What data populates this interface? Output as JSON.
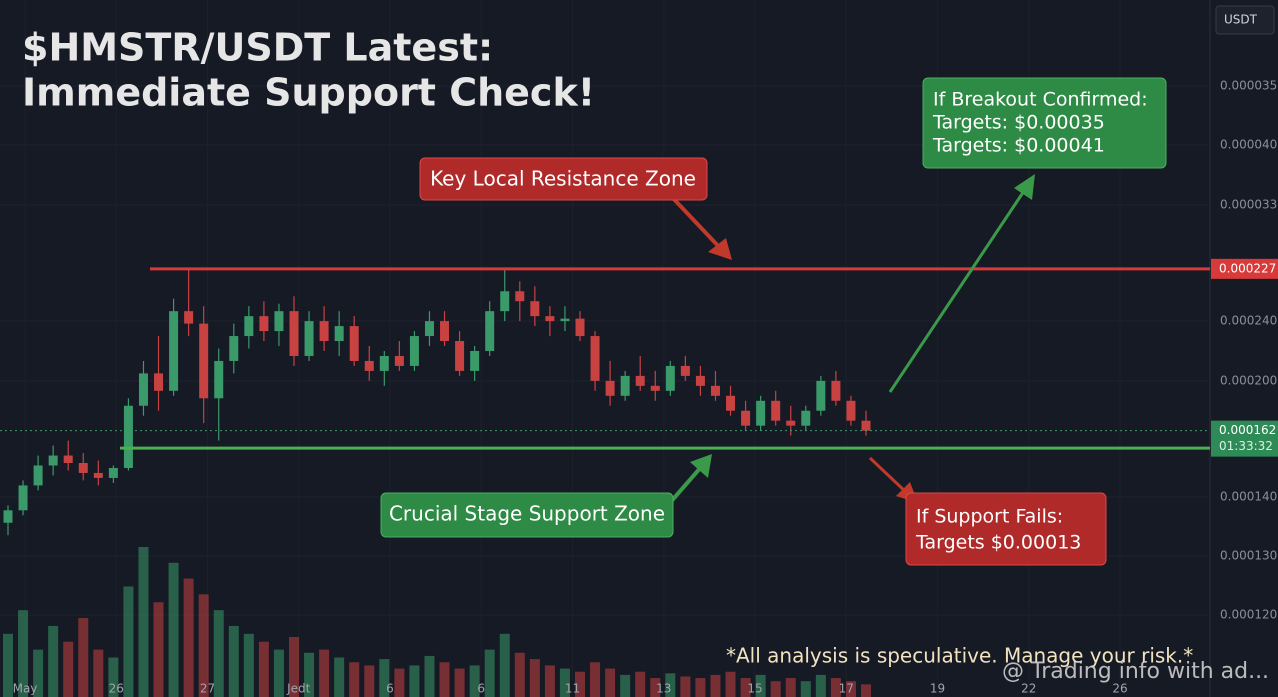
{
  "chart_data": {
    "type": "candlestick",
    "title_lines": [
      "$HMSTR/USDT Latest:",
      "Immediate Support Check!"
    ],
    "currency": "USDT",
    "categories": [
      "May",
      "26",
      "27",
      "Jedt",
      "6",
      "6",
      "11",
      "13",
      "15",
      "17",
      "19",
      "22",
      "26"
    ],
    "ylim": [
      5.5e-05,
      0.000335
    ],
    "price_scale_labels": [
      "0.000035",
      "0.000040",
      "0.000033",
      "0.000240",
      "0.000200",
      "0.000140",
      "0.000130",
      "0.000120"
    ],
    "open": [
      0.000125,
      0.00013,
      0.00014,
      0.000148,
      0.000152,
      0.000149,
      0.000145,
      0.000143,
      0.000147,
      0.000172,
      0.000185,
      0.000178,
      0.00021,
      0.000205,
      0.000175,
      0.00019,
      0.0002,
      0.000208,
      0.000202,
      0.00021,
      0.000192,
      0.000206,
      0.000198,
      0.000204,
      0.00019,
      0.000186,
      0.000192,
      0.000188,
      0.0002,
      0.000206,
      0.000198,
      0.000186,
      0.000194,
      0.00021,
      0.000218,
      0.000214,
      0.000208,
      0.000206,
      0.000207,
      0.0002,
      0.000182,
      0.000176,
      0.000184,
      0.00018,
      0.000178,
      0.000188,
      0.000184,
      0.00018,
      0.000176,
      0.00017,
      0.000164,
      0.000174,
      0.000166,
      0.000164,
      0.00017,
      0.000182,
      0.000174,
      0.000166
    ],
    "high": [
      0.000132,
      0.000142,
      0.000152,
      0.000156,
      0.000158,
      0.000153,
      0.00015,
      0.000148,
      0.000175,
      0.00019,
      0.0002,
      0.000215,
      0.000227,
      0.000212,
      0.000195,
      0.000205,
      0.000212,
      0.000214,
      0.000213,
      0.000216,
      0.00021,
      0.000212,
      0.00021,
      0.000208,
      0.000196,
      0.000194,
      0.000198,
      0.000202,
      0.00021,
      0.00021,
      0.000202,
      0.000196,
      0.000214,
      0.000227,
      0.000222,
      0.00022,
      0.000212,
      0.000212,
      0.00021,
      0.000202,
      0.00019,
      0.000186,
      0.000192,
      0.000186,
      0.00019,
      0.000192,
      0.000188,
      0.000186,
      0.00018,
      0.000174,
      0.000176,
      0.000178,
      0.000172,
      0.000172,
      0.000184,
      0.000186,
      0.000176,
      0.00017
    ],
    "low": [
      0.00012,
      0.000128,
      0.000138,
      0.000144,
      0.000146,
      0.000142,
      0.00014,
      0.000141,
      0.000146,
      0.000168,
      0.00017,
      0.000176,
      0.0002,
      0.000165,
      0.000158,
      0.000185,
      0.000195,
      0.000198,
      0.000196,
      0.000188,
      0.00019,
      0.000194,
      0.000192,
      0.000188,
      0.000182,
      0.00018,
      0.000186,
      0.000186,
      0.000196,
      0.000196,
      0.000184,
      0.000182,
      0.000192,
      0.000206,
      0.000206,
      0.000204,
      0.0002,
      0.000202,
      0.000198,
      0.000178,
      0.000172,
      0.000174,
      0.000178,
      0.000174,
      0.000176,
      0.000182,
      0.000176,
      0.000174,
      0.000168,
      0.000162,
      0.000162,
      0.000164,
      0.00016,
      0.000162,
      0.000168,
      0.000172,
      0.000164,
      0.00016
    ],
    "close": [
      0.00013,
      0.00014,
      0.000148,
      0.000152,
      0.000149,
      0.000145,
      0.000143,
      0.000147,
      0.000172,
      0.000185,
      0.000178,
      0.00021,
      0.000205,
      0.000175,
      0.00019,
      0.0002,
      0.000208,
      0.000202,
      0.00021,
      0.000192,
      0.000206,
      0.000198,
      0.000204,
      0.00019,
      0.000186,
      0.000192,
      0.000188,
      0.0002,
      0.000206,
      0.000198,
      0.000186,
      0.000194,
      0.00021,
      0.000218,
      0.000214,
      0.000208,
      0.000206,
      0.000207,
      0.0002,
      0.000182,
      0.000176,
      0.000184,
      0.00018,
      0.000178,
      0.000188,
      0.000184,
      0.00018,
      0.000176,
      0.00017,
      0.000164,
      0.000174,
      0.000166,
      0.000164,
      0.00017,
      0.000182,
      0.000174,
      0.000166,
      0.000162
    ],
    "volume": [
      40,
      55,
      30,
      45,
      35,
      50,
      30,
      25,
      70,
      95,
      60,
      85,
      75,
      65,
      55,
      45,
      40,
      35,
      30,
      38,
      28,
      30,
      25,
      22,
      20,
      24,
      18,
      20,
      26,
      22,
      18,
      20,
      30,
      40,
      28,
      24,
      20,
      18,
      16,
      22,
      18,
      14,
      16,
      12,
      15,
      13,
      12,
      14,
      16,
      12,
      14,
      10,
      12,
      10,
      14,
      12,
      10,
      8
    ],
    "up_color": "#3a9a6a",
    "down_color": "#c94242",
    "resistance": 0.000227,
    "support": 0.000155,
    "current_price": 0.000162,
    "countdown": "01:33:32",
    "annotations": {
      "resistance_label": "Key Local Resistance Zone",
      "support_label": "Crucial Stage Support Zone",
      "breakout": [
        "If Breakout Confirmed:",
        "Targets: $0.00035",
        "Targets: $0.00041"
      ],
      "fail": [
        "If Support Fails:",
        "Targets $0.00013"
      ]
    },
    "footnote": "*All analysis is speculative. Manage your risk.*",
    "watermark": "@ Trading info with ad..."
  }
}
